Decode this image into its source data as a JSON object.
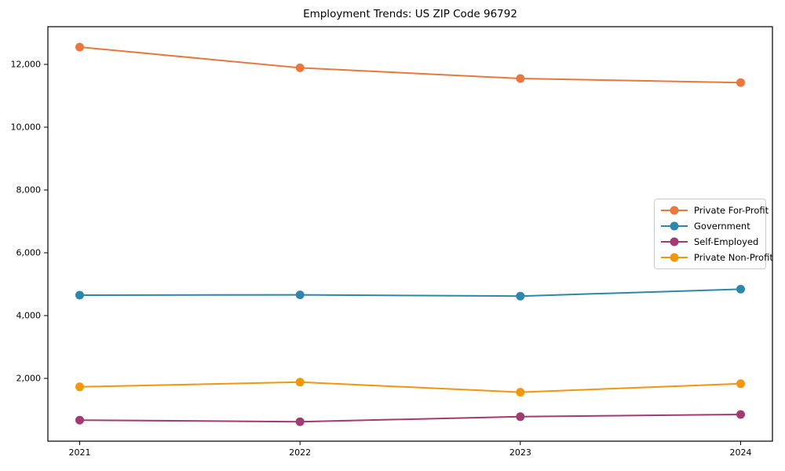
{
  "chart_data": {
    "type": "line",
    "title": "Employment Trends: US ZIP Code 96792",
    "xlabel": "",
    "ylabel": "",
    "x": [
      2021,
      2022,
      2023,
      2024
    ],
    "xtick_labels": [
      "2021",
      "2022",
      "2023",
      "2024"
    ],
    "yticks": [
      2000,
      4000,
      6000,
      8000,
      10000,
      12000
    ],
    "ytick_labels": [
      "2,000",
      "4,000",
      "6,000",
      "8,000",
      "10,000",
      "12,000"
    ],
    "ylim": [
      0,
      13200
    ],
    "grid": false,
    "marker": "circle",
    "legend_position": "right-middle",
    "series": [
      {
        "name": "Private For-Profit",
        "color": "#e8783d",
        "values": [
          12550,
          11890,
          11550,
          11420
        ]
      },
      {
        "name": "Government",
        "color": "#2e86ab",
        "values": [
          4650,
          4660,
          4620,
          4840
        ]
      },
      {
        "name": "Self-Employed",
        "color": "#a23b72",
        "values": [
          670,
          620,
          780,
          850
        ]
      },
      {
        "name": "Private Non-Profit",
        "color": "#f0970f",
        "values": [
          1730,
          1880,
          1560,
          1830
        ]
      }
    ],
    "axis_color": "#000000",
    "tick_label_color": "#000000"
  }
}
